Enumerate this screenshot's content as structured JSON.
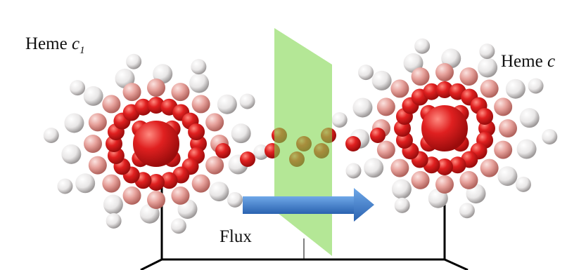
{
  "left_label": {
    "name": "Heme",
    "symbol": "c",
    "subscript": "1"
  },
  "right_label": {
    "name": "Heme",
    "symbol": "c"
  },
  "flux_label": "Flux"
}
